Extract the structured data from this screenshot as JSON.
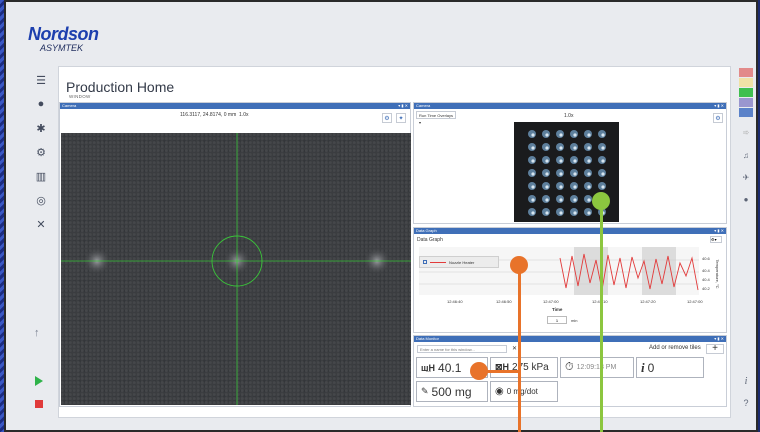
{
  "brand": {
    "name": "Nordson",
    "sub": "ASYMTEK"
  },
  "page": {
    "title": "Production Home",
    "subtitle": "WINDOW"
  },
  "left_nav": {
    "icons": [
      "menu-icon",
      "drop-icon",
      "gear-icon",
      "wrench-icon",
      "chart-icon",
      "database-icon",
      "tools-icon"
    ],
    "up": "↑"
  },
  "camera_main": {
    "header": "Camera",
    "coords": "116.3117, 24.8174, 0 mm",
    "zoom": "1.0x"
  },
  "camera_small": {
    "header": "Camera",
    "overlay": "Run Time Overlays",
    "zoom": "1.0x"
  },
  "graph": {
    "header": "Data Graph",
    "label": "Data Graph",
    "legend": "Nozzle Heater",
    "y_ticks": [
      "40.6",
      "40.4",
      "40.4",
      "40.2"
    ],
    "y_label": "Temperature, °C",
    "x_ticks": [
      "12:46:40",
      "12:46:50",
      "12:47:00",
      "12:47:10",
      "12:47:20",
      "12:47:00"
    ],
    "time_label": "Time",
    "time_value": "1",
    "time_unit": "min"
  },
  "monitor": {
    "header": "Data Monitor",
    "placeholder": "Enter a name for this window...",
    "add_label": "Add or remove tiles",
    "plus": "+",
    "tiles": {
      "t1": "40.1",
      "t2": "275 kPa",
      "t3": "12:09:13 PM",
      "t4": "0",
      "t5": "500 mg",
      "t6": "0 mg/dot"
    }
  },
  "colors": {
    "accent": "#3f6fb8",
    "series": "#e23b3b",
    "callout_orange": "#e8732a",
    "callout_green": "#8cc63f"
  },
  "right_nav": {
    "info": "i",
    "help": "?"
  }
}
